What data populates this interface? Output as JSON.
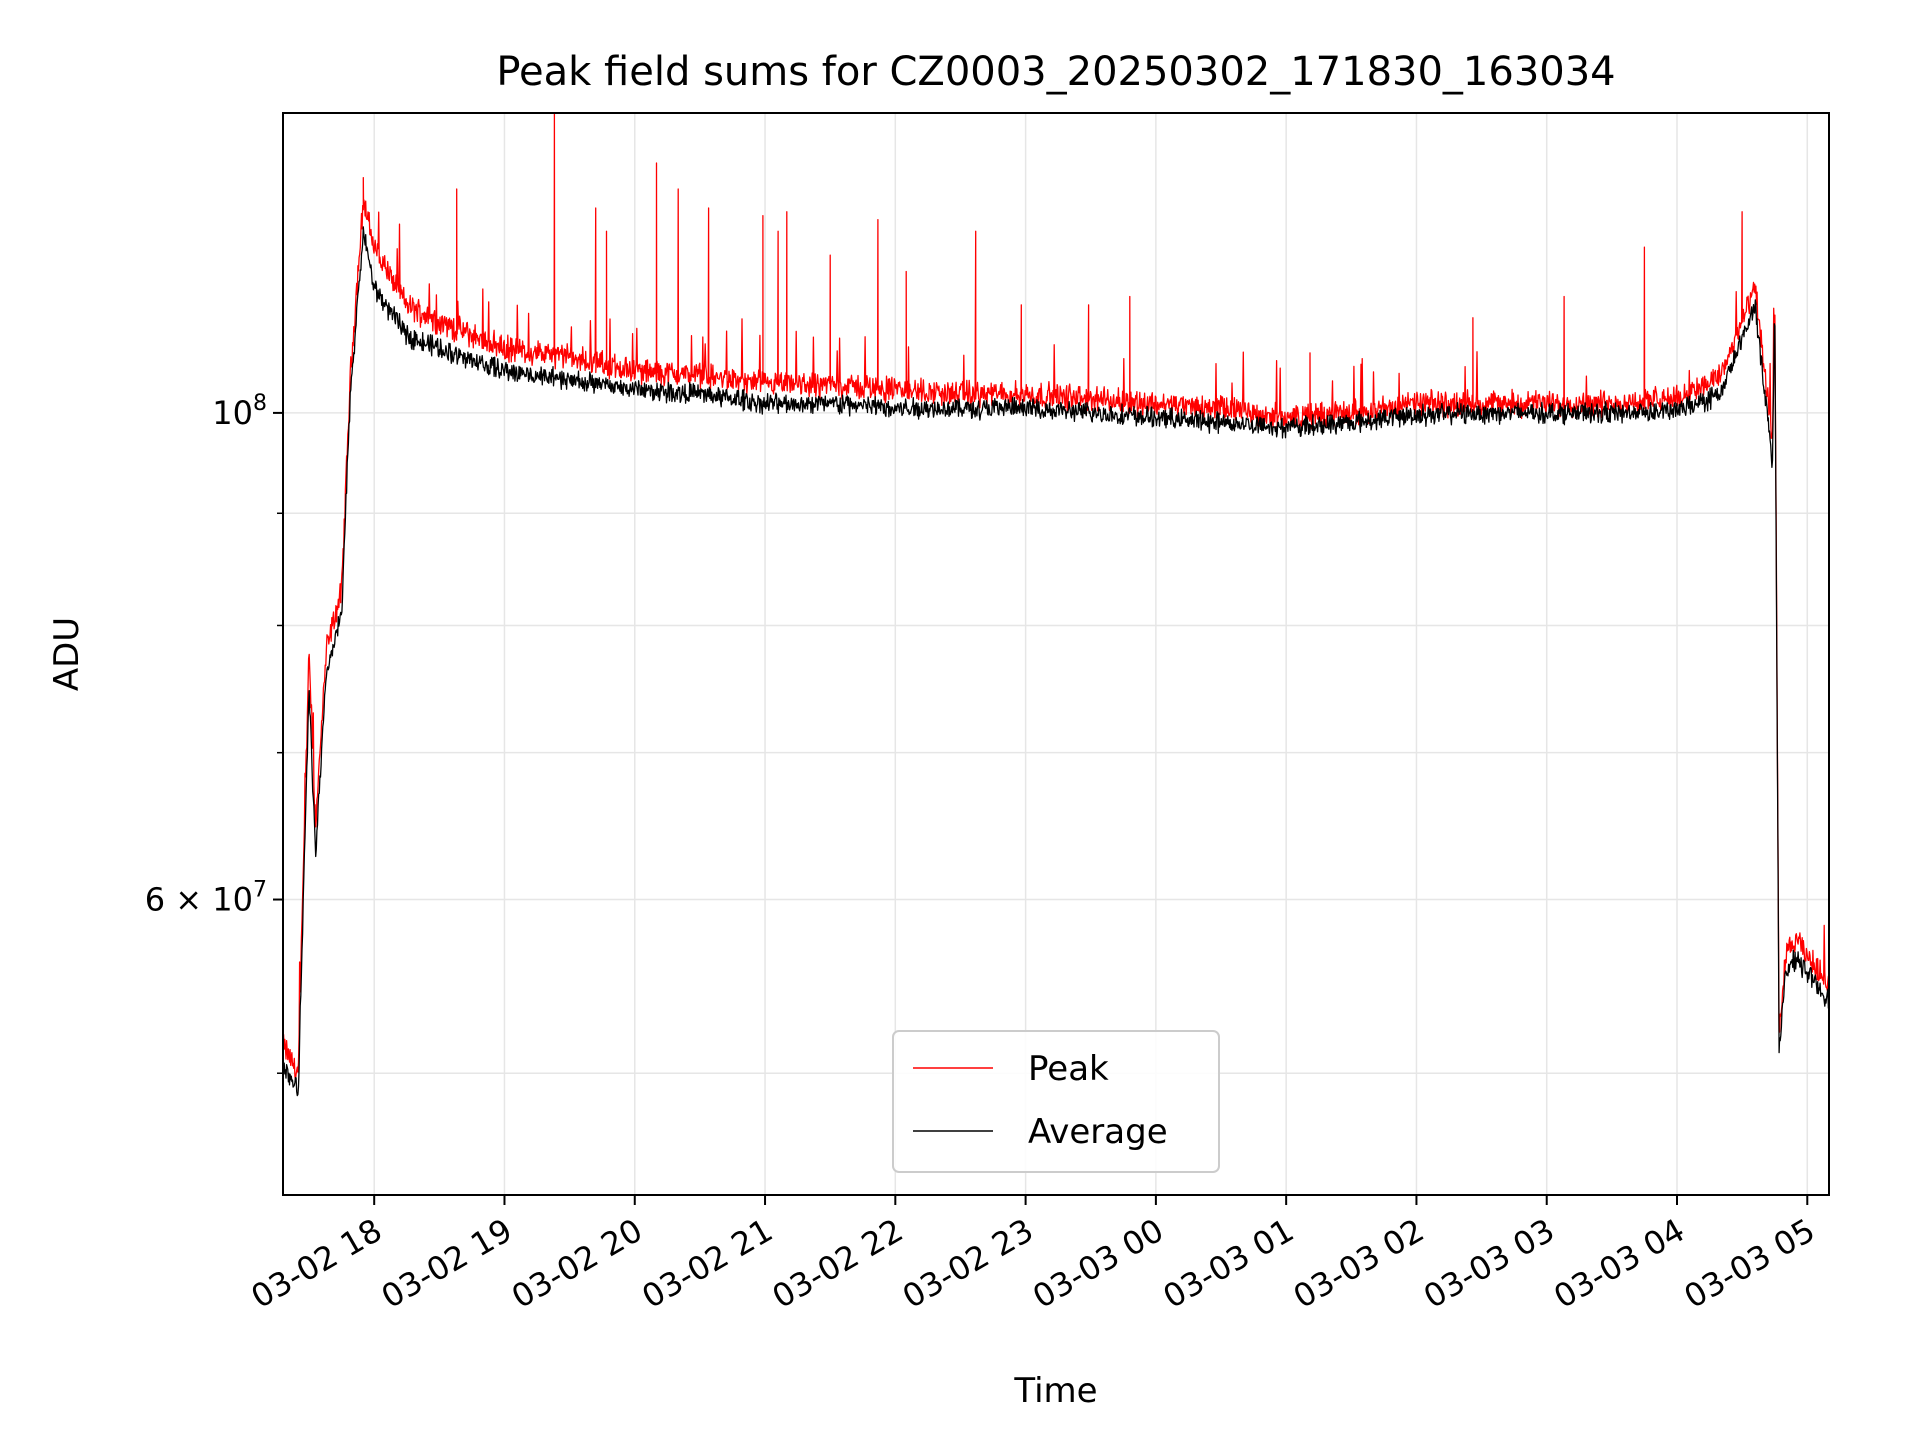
{
  "chart_data": {
    "type": "line",
    "title": "Peak field sums for CZ0003_20250302_171830_163034",
    "xlabel": "Time",
    "ylabel": "ADU",
    "y_scale": "log",
    "grid": true,
    "legend_position": "lower center",
    "x_tick_labels": [
      "03-02 18",
      "03-02 19",
      "03-02 20",
      "03-02 21",
      "03-02 22",
      "03-02 23",
      "03-03 00",
      "03-03 01",
      "03-03 02",
      "03-03 03",
      "03-03 04",
      "03-03 05"
    ],
    "x_range": [
      "2025-03-02 17:18",
      "2025-03-03 05:10"
    ],
    "ylim": [
      44000000,
      137000000
    ],
    "y_tick_labels": [
      {
        "value": 100000000,
        "base": "10",
        "exp": "8"
      },
      {
        "value": 60000000,
        "base": "6 × 10",
        "exp": "7"
      }
    ],
    "y_minor_ticks": [
      50000000,
      70000000,
      80000000,
      90000000
    ],
    "series": [
      {
        "name": "Peak",
        "color": "#ff0000",
        "points": [
          [
            "2025-03-02 17:18",
            51500000
          ],
          [
            "2025-03-02 17:25",
            50000000
          ],
          [
            "2025-03-02 17:30",
            78000000
          ],
          [
            "2025-03-02 17:33",
            65000000
          ],
          [
            "2025-03-02 17:38",
            78000000
          ],
          [
            "2025-03-02 17:45",
            83000000
          ],
          [
            "2025-03-02 17:49",
            104000000
          ],
          [
            "2025-03-02 17:55",
            125000000
          ],
          [
            "2025-03-02 18:00",
            119000000
          ],
          [
            "2025-03-02 18:15",
            112000000
          ],
          [
            "2025-03-02 18:30",
            110000000
          ],
          [
            "2025-03-02 19:00",
            107000000
          ],
          [
            "2025-03-02 19:30",
            106000000
          ],
          [
            "2025-03-02 20:00",
            104500000
          ],
          [
            "2025-03-02 20:30",
            104000000
          ],
          [
            "2025-03-02 21:00",
            103000000
          ],
          [
            "2025-03-02 21:30",
            103000000
          ],
          [
            "2025-03-02 22:00",
            102500000
          ],
          [
            "2025-03-02 22:30",
            102000000
          ],
          [
            "2025-03-02 23:00",
            102000000
          ],
          [
            "2025-03-02 23:30",
            101500000
          ],
          [
            "2025-03-03 00:00",
            101000000
          ],
          [
            "2025-03-03 00:30",
            100500000
          ],
          [
            "2025-03-03 01:00",
            99500000
          ],
          [
            "2025-03-03 01:30",
            100000000
          ],
          [
            "2025-03-03 02:00",
            101000000
          ],
          [
            "2025-03-03 02:30",
            101000000
          ],
          [
            "2025-03-03 03:00",
            101000000
          ],
          [
            "2025-03-03 03:30",
            101000000
          ],
          [
            "2025-03-03 04:00",
            101500000
          ],
          [
            "2025-03-03 04:20",
            104000000
          ],
          [
            "2025-03-03 04:30",
            110000000
          ],
          [
            "2025-03-03 04:36",
            114000000
          ],
          [
            "2025-03-03 04:42",
            101000000
          ],
          [
            "2025-03-03 04:44",
            97000000
          ],
          [
            "2025-03-03 04:45",
            114000000
          ],
          [
            "2025-03-03 04:47",
            52000000
          ],
          [
            "2025-03-03 04:50",
            56500000
          ],
          [
            "2025-03-03 04:55",
            57500000
          ],
          [
            "2025-03-03 05:00",
            56500000
          ],
          [
            "2025-03-03 05:10",
            55000000
          ]
        ],
        "spikes": [
          [
            "2025-03-02 17:55",
            128000000
          ],
          [
            "2025-03-02 18:38",
            126500000
          ],
          [
            "2025-03-02 19:23",
            137000000
          ],
          [
            "2025-03-02 19:42",
            124000000
          ],
          [
            "2025-03-02 19:47",
            121000000
          ],
          [
            "2025-03-02 20:10",
            130000000
          ],
          [
            "2025-03-02 20:20",
            126500000
          ],
          [
            "2025-03-02 20:34",
            124000000
          ],
          [
            "2025-03-02 20:59",
            123000000
          ],
          [
            "2025-03-02 21:06",
            121000000
          ],
          [
            "2025-03-02 21:10",
            123500000
          ],
          [
            "2025-03-02 21:30",
            118000000
          ],
          [
            "2025-03-02 21:52",
            122500000
          ],
          [
            "2025-03-02 22:05",
            116000000
          ],
          [
            "2025-03-02 22:37",
            121000000
          ],
          [
            "2025-03-02 22:58",
            112000000
          ],
          [
            "2025-03-02 23:29",
            112000000
          ],
          [
            "2025-03-02 23:48",
            113000000
          ],
          [
            "2025-03-03 01:11",
            106500000
          ],
          [
            "2025-03-03 02:26",
            110500000
          ],
          [
            "2025-03-03 03:08",
            113000000
          ],
          [
            "2025-03-03 03:45",
            119000000
          ],
          [
            "2025-03-03 04:30",
            123500000
          ]
        ]
      },
      {
        "name": "Average",
        "color": "#000000",
        "points": [
          [
            "2025-03-02 17:18",
            50500000
          ],
          [
            "2025-03-02 17:25",
            49000000
          ],
          [
            "2025-03-02 17:30",
            75000000
          ],
          [
            "2025-03-02 17:33",
            63000000
          ],
          [
            "2025-03-02 17:38",
            76000000
          ],
          [
            "2025-03-02 17:45",
            81000000
          ],
          [
            "2025-03-02 17:49",
            102000000
          ],
          [
            "2025-03-02 17:55",
            121000000
          ],
          [
            "2025-03-02 18:00",
            114000000
          ],
          [
            "2025-03-02 18:15",
            108500000
          ],
          [
            "2025-03-02 18:30",
            107000000
          ],
          [
            "2025-03-02 19:00",
            104500000
          ],
          [
            "2025-03-02 19:30",
            103500000
          ],
          [
            "2025-03-02 20:00",
            102500000
          ],
          [
            "2025-03-02 20:30",
            102000000
          ],
          [
            "2025-03-02 21:00",
            101000000
          ],
          [
            "2025-03-02 21:30",
            101000000
          ],
          [
            "2025-03-02 22:00",
            100500000
          ],
          [
            "2025-03-02 22:30",
            100500000
          ],
          [
            "2025-03-02 23:00",
            100500000
          ],
          [
            "2025-03-02 23:30",
            100000000
          ],
          [
            "2025-03-03 00:00",
            99500000
          ],
          [
            "2025-03-03 00:30",
            99000000
          ],
          [
            "2025-03-03 01:00",
            98500000
          ],
          [
            "2025-03-03 01:30",
            99000000
          ],
          [
            "2025-03-03 02:00",
            99800000
          ],
          [
            "2025-03-03 02:30",
            100000000
          ],
          [
            "2025-03-03 03:00",
            100000000
          ],
          [
            "2025-03-03 03:30",
            100000000
          ],
          [
            "2025-03-03 04:00",
            100200000
          ],
          [
            "2025-03-03 04:20",
            102000000
          ],
          [
            "2025-03-03 04:30",
            108000000
          ],
          [
            "2025-03-03 04:36",
            112000000
          ],
          [
            "2025-03-03 04:42",
            99000000
          ],
          [
            "2025-03-03 04:44",
            95000000
          ],
          [
            "2025-03-03 04:45",
            113000000
          ],
          [
            "2025-03-03 04:47",
            51000000
          ],
          [
            "2025-03-03 04:50",
            55500000
          ],
          [
            "2025-03-03 04:55",
            56500000
          ],
          [
            "2025-03-03 05:00",
            55500000
          ],
          [
            "2025-03-03 05:10",
            54000000
          ]
        ]
      }
    ]
  }
}
